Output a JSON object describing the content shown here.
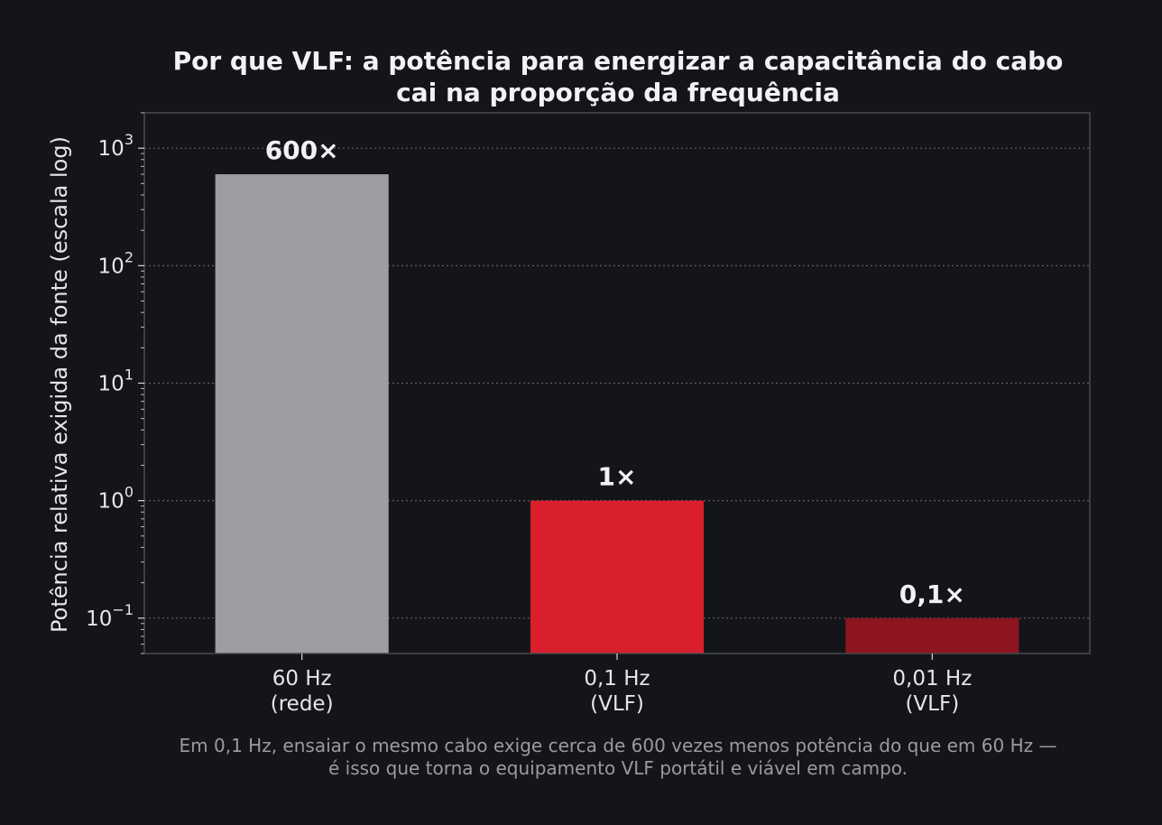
{
  "chart_data": {
    "type": "bar",
    "title_lines": [
      "Por que VLF: a potência para energizar a capacitância do cabo",
      "cai na proporção da frequência"
    ],
    "ylabel": "Potência relativa exigida da fonte (escala log)",
    "xlabel": "",
    "yscale": "log",
    "ylim": [
      0.05,
      2000
    ],
    "yticks": [
      {
        "base": "10",
        "exp": "−1",
        "value": 0.1
      },
      {
        "base": "10",
        "exp": "0",
        "value": 1
      },
      {
        "base": "10",
        "exp": "1",
        "value": 10
      },
      {
        "base": "10",
        "exp": "2",
        "value": 100
      },
      {
        "base": "10",
        "exp": "3",
        "value": 1000
      }
    ],
    "grid": true,
    "categories": [
      {
        "line1": "60 Hz",
        "line2": "(rede)"
      },
      {
        "line1": "0,1 Hz",
        "line2": "(VLF)"
      },
      {
        "line1": "0,01 Hz",
        "line2": "(VLF)"
      }
    ],
    "values": [
      600,
      1,
      0.1
    ],
    "data_labels": [
      "600×",
      "1×",
      "0,1×"
    ],
    "colors": [
      "#9e9da3",
      "#d91f2c",
      "#8d1520"
    ],
    "caption_lines": [
      "Em 0,1 Hz, ensaiar o mesmo cabo exige cerca de 600 vezes menos potência do que em 60 Hz —",
      "é isso que torna o equipamento VLF portátil e viável em campo."
    ]
  }
}
